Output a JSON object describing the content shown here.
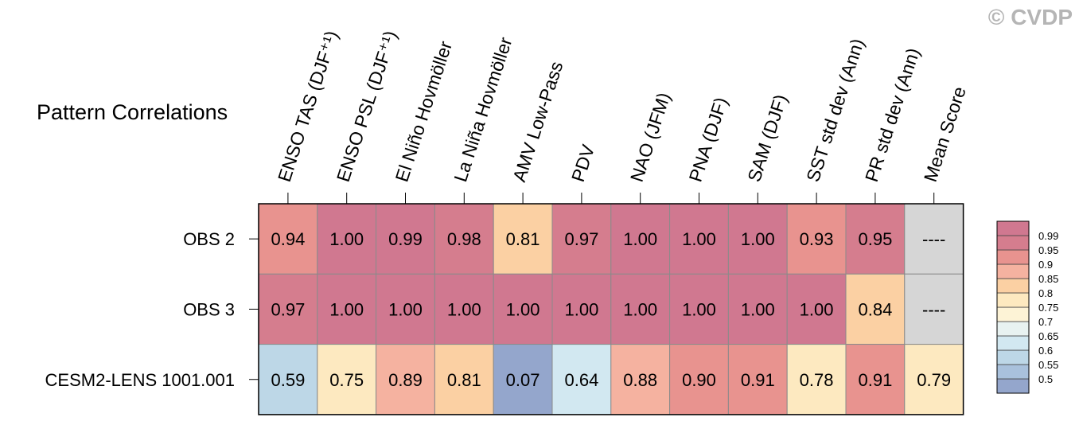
{
  "watermark": "© CVDP",
  "chart_data": {
    "type": "heatmap",
    "title": "Pattern Correlations",
    "columns": [
      "ENSO TAS (DJF⁺¹)",
      "ENSO PSL (DJF⁺¹)",
      "El Niño Hovmöller",
      "La Niña Hovmöller",
      "AMV Low-Pass",
      "PDV",
      "NAO (JFM)",
      "PNA (DJF)",
      "SAM (DJF)",
      "SST std dev (Ann)",
      "PR std dev (Ann)",
      "Mean Score"
    ],
    "rows": [
      {
        "name": "OBS 2",
        "values": [
          0.94,
          1.0,
          0.99,
          0.98,
          0.81,
          0.97,
          1.0,
          1.0,
          1.0,
          0.93,
          0.95,
          null
        ],
        "labels": [
          "0.94",
          "1.00",
          "0.99",
          "0.98",
          "0.81",
          "0.97",
          "1.00",
          "1.00",
          "1.00",
          "0.93",
          "0.95",
          "----"
        ]
      },
      {
        "name": "OBS 3",
        "values": [
          0.97,
          1.0,
          1.0,
          1.0,
          1.0,
          1.0,
          1.0,
          1.0,
          1.0,
          1.0,
          0.84,
          null
        ],
        "labels": [
          "0.97",
          "1.00",
          "1.00",
          "1.00",
          "1.00",
          "1.00",
          "1.00",
          "1.00",
          "1.00",
          "1.00",
          "0.84",
          "----"
        ]
      },
      {
        "name": "CESM2-LENS 1001.001",
        "values": [
          0.59,
          0.75,
          0.89,
          0.81,
          0.07,
          0.64,
          0.88,
          0.9,
          0.91,
          0.78,
          0.91,
          0.79
        ],
        "labels": [
          "0.59",
          "0.75",
          "0.89",
          "0.81",
          "0.07",
          "0.64",
          "0.88",
          "0.90",
          "0.91",
          "0.78",
          "0.91",
          "0.79"
        ]
      }
    ],
    "colorbar": {
      "levels": [
        0.5,
        0.55,
        0.6,
        0.65,
        0.7,
        0.75,
        0.8,
        0.85,
        0.9,
        0.95,
        0.99
      ],
      "labels": [
        "0.5",
        "0.55",
        "0.6",
        "0.65",
        "0.7",
        "0.75",
        "0.8",
        "0.85",
        "0.9",
        "0.95",
        "0.99"
      ],
      "colors": [
        "#94a6cc",
        "#a9c1dc",
        "#bdd7e7",
        "#d2e8f1",
        "#e8f2f1",
        "#fdf3d6",
        "#fde9c0",
        "#fbd0a3",
        "#f5b2a0",
        "#e8938f",
        "#d57d8e",
        "#d07890"
      ],
      "missing_color": "#d6d6d6"
    }
  }
}
